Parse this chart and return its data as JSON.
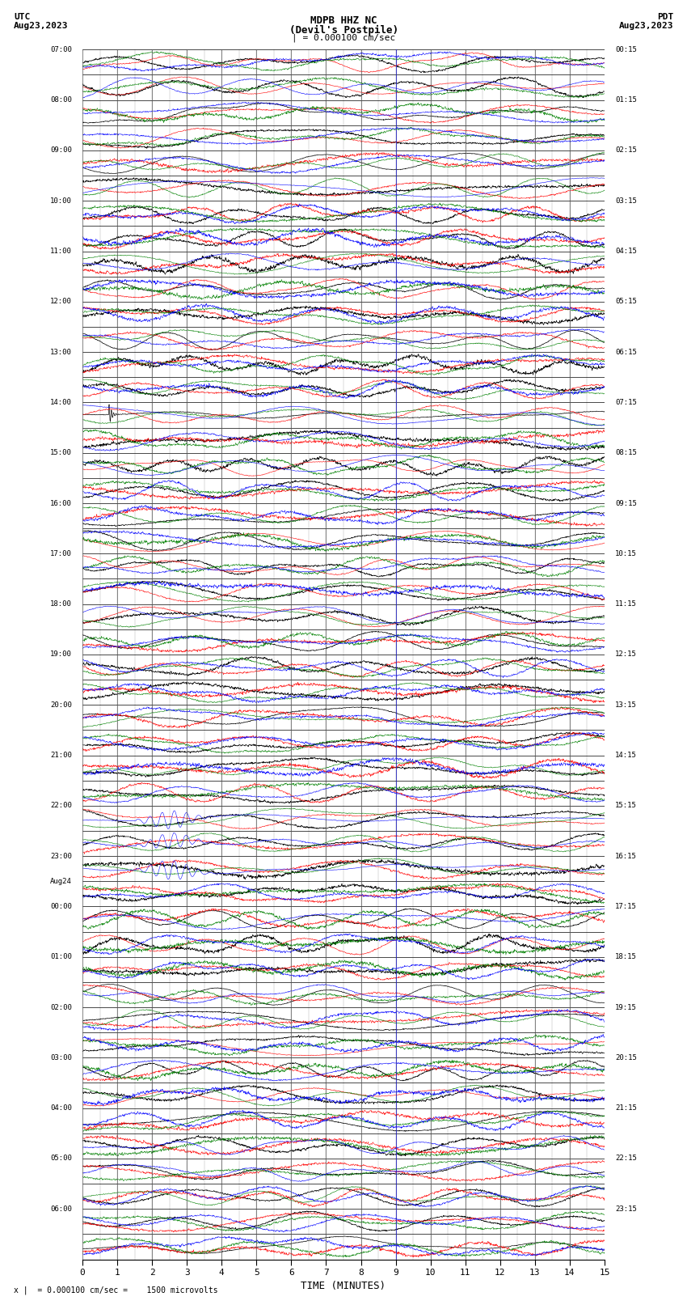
{
  "title_line1": "MDPB HHZ NC",
  "title_line2": "(Devil's Postpile)",
  "scale_label": "| = 0.000100 cm/sec",
  "utc_label": "UTC",
  "pdt_label": "PDT",
  "date_left": "Aug23,2023",
  "date_right": "Aug23,2023",
  "xlabel": "TIME (MINUTES)",
  "footnote": "x |  = 0.000100 cm/sec =    1500 microvolts",
  "bg_color": "#ffffff",
  "grid_color_major": "#000000",
  "grid_color_minor": "#888888",
  "trace_colors": [
    "#000000",
    "#ff0000",
    "#008000",
    "#0000ff"
  ],
  "left_times": [
    "07:00",
    "",
    "08:00",
    "",
    "09:00",
    "",
    "10:00",
    "",
    "11:00",
    "",
    "12:00",
    "",
    "13:00",
    "",
    "14:00",
    "",
    "15:00",
    "",
    "16:00",
    "",
    "17:00",
    "",
    "18:00",
    "",
    "19:00",
    "",
    "20:00",
    "",
    "21:00",
    "",
    "22:00",
    "",
    "23:00",
    "Aug24",
    "00:00",
    "",
    "01:00",
    "",
    "02:00",
    "",
    "03:00",
    "",
    "04:00",
    "",
    "05:00",
    "",
    "06:00",
    ""
  ],
  "right_times": [
    "00:15",
    "",
    "01:15",
    "",
    "02:15",
    "",
    "03:15",
    "",
    "04:15",
    "",
    "05:15",
    "",
    "06:15",
    "",
    "07:15",
    "",
    "08:15",
    "",
    "09:15",
    "",
    "10:15",
    "",
    "11:15",
    "",
    "12:15",
    "",
    "13:15",
    "",
    "14:15",
    "",
    "15:15",
    "",
    "16:15",
    "",
    "17:15",
    "",
    "18:15",
    "",
    "19:15",
    "",
    "20:15",
    "",
    "21:15",
    "",
    "22:15",
    "",
    "23:15",
    ""
  ],
  "n_rows": 48,
  "n_cols": 4,
  "duration_minutes": 15,
  "seed": 42
}
